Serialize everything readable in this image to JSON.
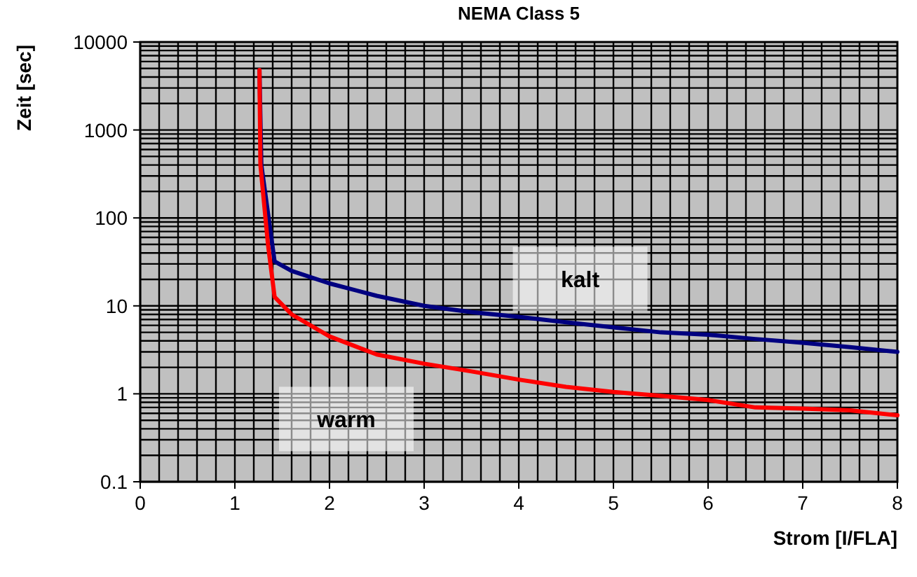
{
  "chart_data": {
    "type": "line",
    "title": "NEMA Class 5",
    "xlabel": "Strom [I/FLA]",
    "ylabel": "Zeit [sec]",
    "log": "y",
    "grid": true,
    "xlim": [
      0,
      8
    ],
    "xticks": [
      0,
      1,
      2,
      3,
      4,
      5,
      6,
      7,
      8
    ],
    "ylim": [
      0.1,
      10000
    ],
    "yticks": [
      0.1,
      1,
      10,
      100,
      1000,
      10000
    ],
    "series": [
      {
        "name": "kalt",
        "color": "#000080",
        "x": [
          1.26,
          1.28,
          1.42,
          1.6,
          2,
          2.5,
          3,
          3.5,
          4,
          4.5,
          5,
          5.5,
          6,
          6.5,
          7,
          7.5,
          8
        ],
        "values": [
          4800,
          400,
          32,
          25,
          18,
          13,
          10,
          8.5,
          7.5,
          6.5,
          5.7,
          5,
          4.7,
          4.2,
          3.8,
          3.4,
          3
        ]
      },
      {
        "name": "warm",
        "color": "#ff0000",
        "x": [
          1.26,
          1.27,
          1.35,
          1.42,
          1.6,
          2,
          2.5,
          3,
          3.5,
          4,
          4.5,
          5,
          5.5,
          6,
          6.5,
          7,
          7.5,
          8
        ],
        "values": [
          4800,
          400,
          50,
          12.6,
          8,
          4.5,
          2.8,
          2.2,
          1.8,
          1.45,
          1.2,
          1.05,
          0.95,
          0.85,
          0.7,
          0.68,
          0.65,
          0.57
        ]
      }
    ]
  }
}
